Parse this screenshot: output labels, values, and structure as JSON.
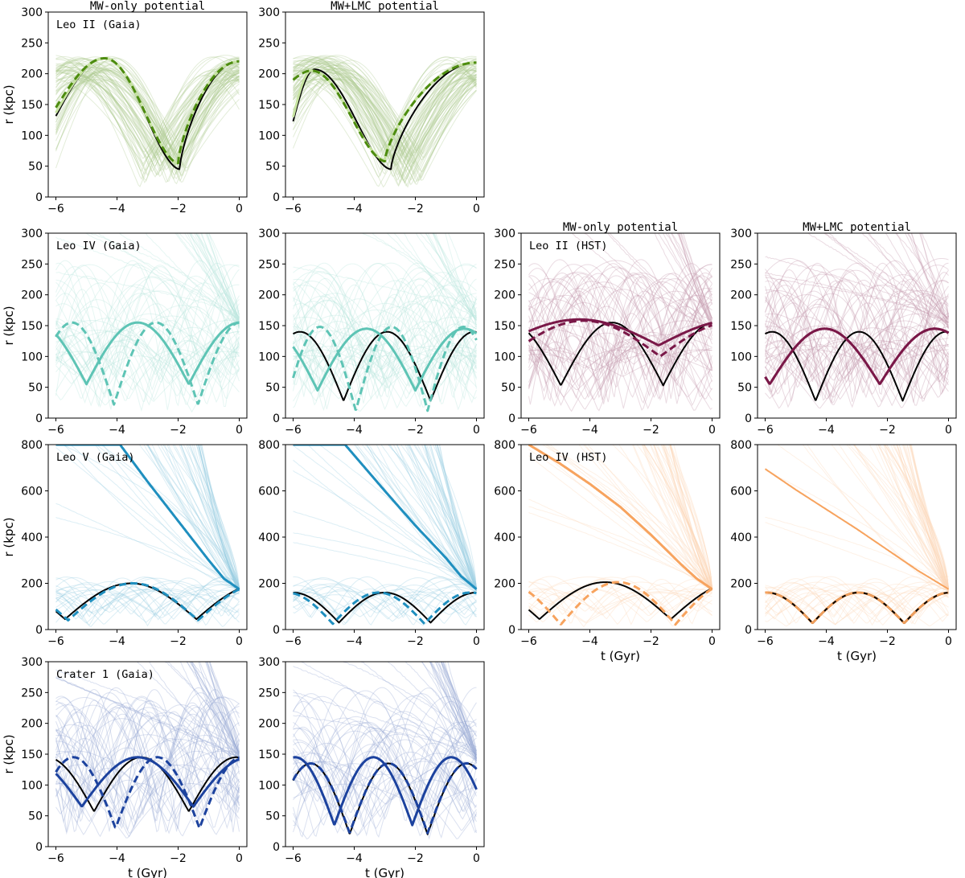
{
  "chart_data": {
    "type": "line",
    "xlabel": "t (Gyr)",
    "ylabel": "r (kpc)",
    "xlim": [
      -6.25,
      0.25
    ],
    "xticks": [
      -6,
      -4,
      -2,
      0
    ],
    "xtick_labels": [
      "−6",
      "−4",
      "−2",
      "0"
    ],
    "column_titles": {
      "mw_only": "MW-only potential",
      "mw_lmc": "MW+LMC potential"
    },
    "panels": [
      {
        "id": "leo2-gaia-mw",
        "row": 0,
        "col": 0,
        "label": "Leo II (Gaia)",
        "title": "MW-only potential",
        "color": "#4d8c0f",
        "ylim": [
          0,
          300
        ],
        "yticks": [
          0,
          50,
          100,
          150,
          200,
          250,
          300
        ],
        "ylabel": "r (kpc)",
        "background": "bounded",
        "series": [
          {
            "name": "reference",
            "style": "solid",
            "color": "#000000",
            "t0": -6,
            "t1": 0,
            "peri": 45,
            "apo": 225,
            "t_apo": -4.4,
            "t_peri": -1.95,
            "now": 220
          },
          {
            "name": "median-solid",
            "style": "solid",
            "color": "#c6e3a0",
            "t0": -6,
            "t1": 0,
            "peri": 55,
            "apo": 225,
            "t_apo": -4.4,
            "t_peri": -2.0,
            "now": 220
          },
          {
            "name": "median-dashed",
            "style": "dashed",
            "color": "#4d8c0f",
            "t0": -6,
            "t1": 0,
            "peri": 55,
            "apo": 225,
            "t_apo": -4.4,
            "t_peri": -2.0,
            "now": 220,
            "start": 145
          }
        ]
      },
      {
        "id": "leo2-gaia-lmc",
        "row": 0,
        "col": 1,
        "label": "",
        "title": "MW+LMC potential",
        "color": "#4d8c0f",
        "ylim": [
          0,
          300
        ],
        "yticks": [
          0,
          50,
          100,
          150,
          200,
          250,
          300
        ],
        "background": "bounded",
        "series": [
          {
            "name": "reference",
            "style": "solid",
            "color": "#000000",
            "t0": -6,
            "t1": 0,
            "peri": 45,
            "apo": 207,
            "t_apo": -5.3,
            "t_peri": -2.8,
            "now": 218
          },
          {
            "name": "median-solid",
            "style": "solid",
            "color": "#c6e3a0",
            "t0": -6,
            "t1": 0,
            "peri": 60,
            "apo": 205,
            "t_apo": -5.4,
            "t_peri": -3.0,
            "now": 218
          },
          {
            "name": "median-dashed",
            "style": "dashed",
            "color": "#4d8c0f",
            "t0": -6,
            "t1": 0,
            "peri": 58,
            "apo": 205,
            "t_apo": -5.4,
            "t_peri": -3.0,
            "now": 218,
            "start": 190
          }
        ]
      },
      {
        "id": "leo4-gaia-mw",
        "row": 1,
        "col": 0,
        "label": "Leo IV (Gaia)",
        "title": "",
        "color": "#5ec4b5",
        "ylim": [
          0,
          300
        ],
        "yticks": [
          0,
          50,
          100,
          150,
          200,
          250,
          300
        ],
        "ylabel": "r (kpc)",
        "background": "mixed",
        "series": [
          {
            "name": "reference",
            "style": "solid",
            "color": "#000000",
            "periodic": true,
            "period": 3.35,
            "phase": -5.0,
            "peri": 55,
            "apo": 155,
            "t0": -6,
            "t1": 0
          },
          {
            "name": "median-solid",
            "style": "solid",
            "color": "#5ec4b5",
            "periodic": true,
            "period": 3.35,
            "phase": -5.0,
            "peri": 55,
            "apo": 155,
            "t0": -6,
            "t1": 0,
            "lw": 3
          },
          {
            "name": "median-dashed",
            "style": "dashed",
            "color": "#5ec4b5",
            "periodic": true,
            "period": 2.75,
            "phase": -4.1,
            "peri": 22,
            "apo": 155,
            "t0": -6,
            "t1": 0,
            "lw": 3
          }
        ]
      },
      {
        "id": "leo4-gaia-lmc",
        "row": 1,
        "col": 1,
        "label": "",
        "title": "",
        "color": "#5ec4b5",
        "ylim": [
          0,
          300
        ],
        "yticks": [
          0,
          50,
          100,
          150,
          200,
          250,
          300
        ],
        "background": "mixed",
        "series": [
          {
            "name": "reference",
            "style": "solid",
            "color": "#000000",
            "periodic": true,
            "period": 2.85,
            "phase": -4.35,
            "peri": 28,
            "apo": 140,
            "t0": -6,
            "t1": 0
          },
          {
            "name": "median-solid",
            "style": "solid",
            "color": "#5ec4b5",
            "periodic": true,
            "period": 3.2,
            "phase": -5.2,
            "peri": 45,
            "apo": 145,
            "t0": -6,
            "t1": 0,
            "lw": 3
          },
          {
            "name": "median-dashed",
            "style": "dashed",
            "color": "#5ec4b5",
            "periodic": true,
            "period": 2.35,
            "phase": -3.95,
            "peri": 12,
            "apo": 148,
            "t0": -6,
            "t1": 0,
            "lw": 3
          }
        ]
      },
      {
        "id": "leo2-hst-mw",
        "row": 1,
        "col": 2,
        "label": "Leo II (HST)",
        "title": "MW-only potential",
        "color": "#7a1848",
        "ylim": [
          0,
          300
        ],
        "yticks": [
          0,
          50,
          100,
          150,
          200,
          250,
          300
        ],
        "background": "mixed",
        "series": [
          {
            "name": "reference",
            "style": "solid",
            "color": "#000000",
            "periodic": true,
            "period": 3.35,
            "phase": -4.95,
            "peri": 53,
            "apo": 155,
            "t0": -6,
            "t1": 0
          },
          {
            "name": "median-solid",
            "style": "solid",
            "color": "#7a1848",
            "periodic": true,
            "period": 5.2,
            "phase": -1.75,
            "peri": 118,
            "apo": 160,
            "t0": -6,
            "t1": 0,
            "lw": 3
          },
          {
            "name": "median-dashed",
            "style": "dashed",
            "color": "#7a1848",
            "periodic": true,
            "period": 5.0,
            "phase": -1.7,
            "peri": 100,
            "apo": 158,
            "t0": -6,
            "t1": 0,
            "lw": 3
          }
        ]
      },
      {
        "id": "leo2-hst-lmc",
        "row": 1,
        "col": 3,
        "label": "",
        "title": "MW+LMC potential",
        "color": "#7a1848",
        "ylim": [
          0,
          300
        ],
        "yticks": [
          0,
          50,
          100,
          150,
          200,
          250,
          300
        ],
        "background": "mixed",
        "series": [
          {
            "name": "reference",
            "style": "solid",
            "color": "#000000",
            "periodic": true,
            "period": 2.85,
            "phase": -4.35,
            "peri": 28,
            "apo": 140,
            "t0": -6,
            "t1": 0
          },
          {
            "name": "median-solid",
            "style": "solid",
            "color": "#7a1848",
            "periodic": true,
            "period": 3.6,
            "phase": -2.25,
            "peri": 55,
            "apo": 145,
            "t0": -6,
            "t1": 0,
            "lw": 3
          },
          {
            "name": "median-dashed",
            "style": "dashed",
            "color": "#7a1848",
            "periodic": true,
            "period": 3.6,
            "phase": -2.25,
            "peri": 55,
            "apo": 145,
            "t0": -6,
            "t1": 0,
            "lw": 3
          }
        ]
      },
      {
        "id": "leo5-gaia-mw",
        "row": 2,
        "col": 0,
        "label": "Leo V (Gaia)",
        "title": "",
        "color": "#1f8fbf",
        "ylim": [
          0,
          800
        ],
        "yticks": [
          0,
          200,
          400,
          600,
          800
        ],
        "ylabel": "r (kpc)",
        "background": "escaping",
        "series": [
          {
            "name": "reference",
            "style": "solid",
            "color": "#000000",
            "periodic": true,
            "period": 4.3,
            "phase": -5.7,
            "peri": 45,
            "apo": 200,
            "t0": -6,
            "t1": 0
          },
          {
            "name": "median-dashed",
            "style": "dashed",
            "color": "#1f8fbf",
            "periodic": true,
            "period": 4.25,
            "phase": -5.6,
            "peri": 40,
            "apo": 200,
            "t0": -6,
            "t1": 0,
            "lw": 3
          },
          {
            "name": "escape",
            "style": "solid",
            "color": "#1f8fbf",
            "escape": true,
            "points": [
              [
                0,
                175
              ],
              [
                -0.5,
                220
              ],
              [
                -1.0,
                300
              ],
              [
                -2.0,
                470
              ],
              [
                -3.0,
                640
              ],
              [
                -3.9,
                800
              ]
            ],
            "lw": 3
          }
        ]
      },
      {
        "id": "leo5-gaia-lmc",
        "row": 2,
        "col": 1,
        "label": "",
        "title": "",
        "color": "#1f8fbf",
        "ylim": [
          0,
          800
        ],
        "yticks": [
          0,
          200,
          400,
          600,
          800
        ],
        "background": "escaping",
        "series": [
          {
            "name": "reference",
            "style": "solid",
            "color": "#000000",
            "periodic": true,
            "period": 3.0,
            "phase": -4.5,
            "peri": 30,
            "apo": 160,
            "t0": -6,
            "t1": 0
          },
          {
            "name": "median-dashed",
            "style": "dashed",
            "color": "#1f8fbf",
            "periodic": true,
            "period": 3.0,
            "phase": -4.7,
            "peri": 25,
            "apo": 160,
            "t0": -6,
            "t1": 0,
            "lw": 3
          },
          {
            "name": "escape",
            "style": "solid",
            "color": "#1f8fbf",
            "escape": true,
            "points": [
              [
                0,
                175
              ],
              [
                -0.5,
                230
              ],
              [
                -1.0,
                310
              ],
              [
                -2.0,
                450
              ],
              [
                -3.0,
                600
              ],
              [
                -4.3,
                800
              ]
            ],
            "lw": 3
          }
        ]
      },
      {
        "id": "leo4-hst-mw",
        "row": 2,
        "col": 2,
        "label": "Leo IV (HST)",
        "title": "",
        "color": "#f7a35e",
        "ylim": [
          0,
          800
        ],
        "yticks": [
          0,
          200,
          400,
          600,
          800
        ],
        "xlabel": "t (Gyr)",
        "background": "escaping",
        "series": [
          {
            "name": "reference",
            "style": "solid",
            "color": "#000000",
            "periodic": true,
            "period": 4.3,
            "phase": -5.65,
            "peri": 45,
            "apo": 205,
            "t0": -6,
            "t1": 0
          },
          {
            "name": "median-dashed",
            "style": "dashed",
            "color": "#f7a35e",
            "periodic": true,
            "period": 3.75,
            "phase": -4.95,
            "peri": 22,
            "apo": 205,
            "t0": -6,
            "t1": 0,
            "lw": 3
          },
          {
            "name": "escape",
            "style": "solid",
            "color": "#f7a35e",
            "escape": true,
            "points": [
              [
                0,
                175
              ],
              [
                -0.5,
                220
              ],
              [
                -1.0,
                280
              ],
              [
                -2.0,
                410
              ],
              [
                -3.0,
                530
              ],
              [
                -4.0,
                630
              ],
              [
                -5.0,
                720
              ],
              [
                -6.0,
                800
              ]
            ],
            "lw": 3
          }
        ]
      },
      {
        "id": "leo4-hst-lmc",
        "row": 2,
        "col": 3,
        "label": "",
        "title": "",
        "color": "#f7a35e",
        "ylim": [
          0,
          800
        ],
        "yticks": [
          0,
          200,
          400,
          600,
          800
        ],
        "xlabel": "t (Gyr)",
        "background": "escaping",
        "series": [
          {
            "name": "median-solid",
            "style": "solid",
            "color": "#f7a35e",
            "periodic": true,
            "period": 3.0,
            "phase": -4.45,
            "peri": 28,
            "apo": 160,
            "t0": -6,
            "t1": 0,
            "lw": 3
          },
          {
            "name": "reference",
            "style": "solid",
            "color": "#000000",
            "periodic": true,
            "period": 3.0,
            "phase": -4.45,
            "peri": 28,
            "apo": 160,
            "t0": -6,
            "t1": 0
          },
          {
            "name": "median-dashed",
            "style": "dashed",
            "color": "#f7a35e",
            "periodic": true,
            "period": 3.0,
            "phase": -4.45,
            "peri": 28,
            "apo": 160,
            "t0": -6,
            "t1": 0,
            "lw": 2
          },
          {
            "name": "escape",
            "style": "solid",
            "color": "#f7a35e",
            "escape": true,
            "points": [
              [
                0,
                175
              ],
              [
                -1.0,
                255
              ],
              [
                -2.0,
                345
              ],
              [
                -3.0,
                435
              ],
              [
                -4.0,
                520
              ],
              [
                -5.0,
                605
              ],
              [
                -6.0,
                695
              ]
            ],
            "lw": 2
          }
        ]
      },
      {
        "id": "crater1-gaia-mw",
        "row": 3,
        "col": 0,
        "label": "Crater 1 (Gaia)",
        "title": "",
        "color": "#1c429e",
        "ylim": [
          0,
          300
        ],
        "yticks": [
          0,
          50,
          100,
          150,
          200,
          250,
          300
        ],
        "ylabel": "r (kpc)",
        "xlabel": "t (Gyr)",
        "background": "mixed",
        "series": [
          {
            "name": "reference",
            "style": "solid",
            "color": "#000000",
            "periodic": true,
            "period": 3.1,
            "phase": -4.75,
            "peri": 57,
            "apo": 145,
            "t0": -6,
            "t1": 0
          },
          {
            "name": "median-solid",
            "style": "solid",
            "color": "#1c429e",
            "periodic": true,
            "period": 3.65,
            "phase": -5.15,
            "peri": 65,
            "apo": 145,
            "t0": -6,
            "t1": 0,
            "lw": 3
          },
          {
            "name": "median-dashed",
            "style": "dashed",
            "color": "#1c429e",
            "periodic": true,
            "period": 2.75,
            "phase": -4.05,
            "peri": 30,
            "apo": 145,
            "t0": -6,
            "t1": 0,
            "lw": 3
          }
        ]
      },
      {
        "id": "crater1-gaia-lmc",
        "row": 3,
        "col": 1,
        "label": "",
        "title": "",
        "color": "#1c429e",
        "ylim": [
          0,
          300
        ],
        "yticks": [
          0,
          50,
          100,
          150,
          200,
          250,
          300
        ],
        "xlabel": "t (Gyr)",
        "background": "mixed",
        "series": [
          {
            "name": "reference",
            "style": "solid",
            "color": "#000000",
            "periodic": true,
            "period": 2.55,
            "phase": -4.15,
            "peri": 20,
            "apo": 135,
            "t0": -6,
            "t1": 0
          },
          {
            "name": "median-dashed",
            "style": "dashed",
            "color": "#1c429e",
            "periodic": true,
            "period": 2.55,
            "phase": -4.15,
            "peri": 22,
            "apo": 135,
            "t0": -6,
            "t1": 0,
            "lw": 3
          },
          {
            "name": "median-solid",
            "style": "solid",
            "color": "#1c429e",
            "periodic": true,
            "period": 2.55,
            "phase": -4.65,
            "peri": 35,
            "apo": 145,
            "t0": -6,
            "t1": 0,
            "lw": 3
          }
        ]
      }
    ]
  }
}
